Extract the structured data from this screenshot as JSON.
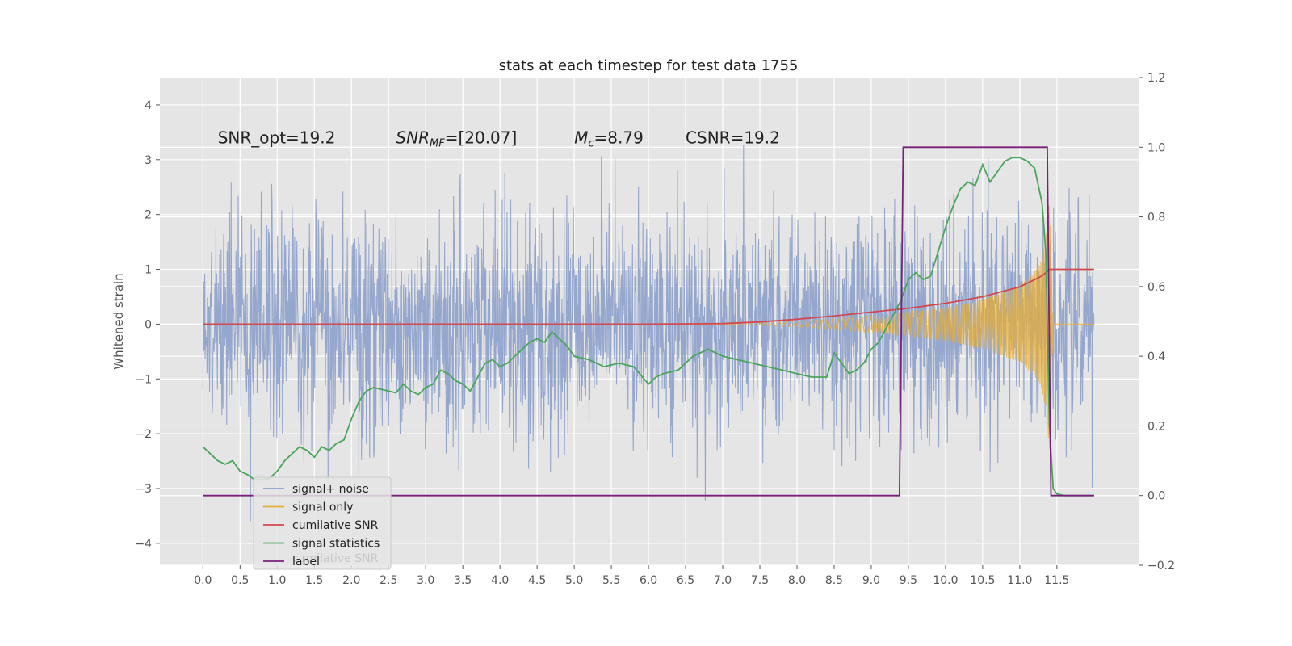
{
  "chart_data": {
    "type": "line",
    "title": "stats at each timestep for test data 1755",
    "xlabel": "",
    "ylabel": "Whitened strain",
    "xlim": [
      -0.58,
      12.6
    ],
    "ylim": [
      -4.4,
      4.5
    ],
    "y2lim": [
      -0.2,
      1.2
    ],
    "x_ticks": [
      "0.0",
      "0.5",
      "1.0",
      "1.5",
      "2.0",
      "2.5",
      "3.0",
      "3.5",
      "4.0",
      "4.5",
      "5.0",
      "5.5",
      "6.0",
      "6.5",
      "7.0",
      "7.5",
      "8.0",
      "8.5",
      "9.0",
      "9.5",
      "10.0",
      "10.5",
      "11.0",
      "11.5"
    ],
    "y_ticks": [
      "4",
      "3",
      "2",
      "1",
      "0",
      "−1",
      "−2",
      "−3",
      "−4"
    ],
    "y2_ticks": [
      "1.2",
      "1.0",
      "0.8",
      "0.6",
      "0.4",
      "0.2",
      "0.0",
      "−0.2"
    ],
    "grid": true,
    "legend_position": "lower-left",
    "annotations": [
      {
        "label": "SNR_opt=19.2",
        "x": 0.2,
        "y": 3.3
      },
      {
        "label": "SNR_MF=[20.07]",
        "x": 2.6,
        "y": 3.3
      },
      {
        "label": "M_c=8.79",
        "x": 5.0,
        "y": 3.3
      },
      {
        "label": "CSNR=19.2",
        "x": 6.5,
        "y": 3.3
      }
    ],
    "series": [
      {
        "name": "signal+ noise",
        "color": "#8da0cb",
        "axis": "left",
        "kind": "noise",
        "amplitude_std": 1.0,
        "x_range": [
          0.0,
          12.0
        ]
      },
      {
        "name": "signal only",
        "color": "#e5ae38",
        "axis": "left",
        "kind": "chirp",
        "envelope": {
          "x": [
            0,
            7.0,
            8.0,
            9.0,
            9.5,
            10.0,
            10.5,
            11.0,
            11.2,
            11.3,
            11.35,
            11.4,
            11.45,
            12.0
          ],
          "y": [
            0,
            0,
            0.05,
            0.15,
            0.22,
            0.3,
            0.45,
            0.7,
            0.95,
            1.2,
            1.6,
            2.4,
            0,
            0
          ]
        }
      },
      {
        "name": "cumilative SNR",
        "color": "#d1494e",
        "axis": "left",
        "x": [
          0.0,
          6.0,
          7.0,
          7.5,
          8.0,
          8.5,
          9.0,
          9.5,
          10.0,
          10.5,
          11.0,
          11.3,
          11.4,
          11.45,
          12.0
        ],
        "y": [
          0.0,
          0.0,
          0.01,
          0.04,
          0.09,
          0.15,
          0.22,
          0.29,
          0.38,
          0.5,
          0.68,
          0.88,
          1.0,
          1.0,
          1.0
        ]
      },
      {
        "name": "signal statistics",
        "color": "#4aa55b",
        "axis": "right",
        "x": [
          0.0,
          0.1,
          0.2,
          0.3,
          0.4,
          0.5,
          0.6,
          0.7,
          0.8,
          0.9,
          1.0,
          1.1,
          1.2,
          1.3,
          1.4,
          1.5,
          1.6,
          1.7,
          1.8,
          1.9,
          2.0,
          2.1,
          2.2,
          2.3,
          2.4,
          2.5,
          2.6,
          2.7,
          2.8,
          2.9,
          3.0,
          3.1,
          3.2,
          3.3,
          3.4,
          3.5,
          3.6,
          3.7,
          3.8,
          3.9,
          4.0,
          4.1,
          4.2,
          4.3,
          4.4,
          4.5,
          4.6,
          4.7,
          4.8,
          4.9,
          5.0,
          5.2,
          5.4,
          5.6,
          5.8,
          6.0,
          6.1,
          6.2,
          6.4,
          6.6,
          6.8,
          7.0,
          7.2,
          7.4,
          7.6,
          7.8,
          8.0,
          8.2,
          8.4,
          8.5,
          8.6,
          8.7,
          8.8,
          8.9,
          9.0,
          9.1,
          9.2,
          9.3,
          9.4,
          9.5,
          9.6,
          9.7,
          9.8,
          9.9,
          10.0,
          10.1,
          10.2,
          10.3,
          10.4,
          10.5,
          10.6,
          10.7,
          10.8,
          10.9,
          11.0,
          11.1,
          11.2,
          11.3,
          11.35,
          11.4,
          11.45,
          11.5,
          11.6,
          11.8,
          12.0
        ],
        "y": [
          0.14,
          0.12,
          0.1,
          0.09,
          0.1,
          0.07,
          0.06,
          0.045,
          0.045,
          0.05,
          0.07,
          0.1,
          0.12,
          0.14,
          0.13,
          0.11,
          0.14,
          0.13,
          0.15,
          0.16,
          0.22,
          0.27,
          0.3,
          0.31,
          0.305,
          0.3,
          0.295,
          0.32,
          0.3,
          0.29,
          0.31,
          0.32,
          0.36,
          0.35,
          0.33,
          0.32,
          0.3,
          0.34,
          0.38,
          0.39,
          0.37,
          0.38,
          0.4,
          0.42,
          0.44,
          0.45,
          0.44,
          0.47,
          0.45,
          0.43,
          0.4,
          0.39,
          0.37,
          0.38,
          0.37,
          0.32,
          0.34,
          0.35,
          0.36,
          0.4,
          0.42,
          0.4,
          0.39,
          0.38,
          0.37,
          0.36,
          0.35,
          0.34,
          0.34,
          0.41,
          0.38,
          0.35,
          0.36,
          0.38,
          0.42,
          0.44,
          0.48,
          0.52,
          0.56,
          0.62,
          0.64,
          0.62,
          0.63,
          0.7,
          0.77,
          0.83,
          0.88,
          0.9,
          0.89,
          0.95,
          0.9,
          0.93,
          0.96,
          0.97,
          0.97,
          0.96,
          0.94,
          0.84,
          0.7,
          0.2,
          0.02,
          0.005,
          0.0,
          0.0,
          0.0
        ]
      },
      {
        "name": "label",
        "color": "#7a1f7d",
        "axis": "right",
        "x": [
          0.0,
          9.38,
          9.43,
          11.37,
          11.42,
          12.0
        ],
        "y": [
          0.0,
          0.0,
          1.0,
          1.0,
          0.0,
          0.0
        ]
      }
    ]
  },
  "legend": {
    "items": [
      {
        "name": "signal+ noise",
        "color": "#8da0cb"
      },
      {
        "name": "signal only",
        "color": "#e5ae38"
      },
      {
        "name": "cumilative SNR",
        "color": "#d1494e"
      },
      {
        "name": "signal statistics",
        "color": "#4aa55b"
      },
      {
        "name": "label",
        "color": "#7a1f7d"
      }
    ],
    "ghost_text": "cumilative SNR"
  }
}
